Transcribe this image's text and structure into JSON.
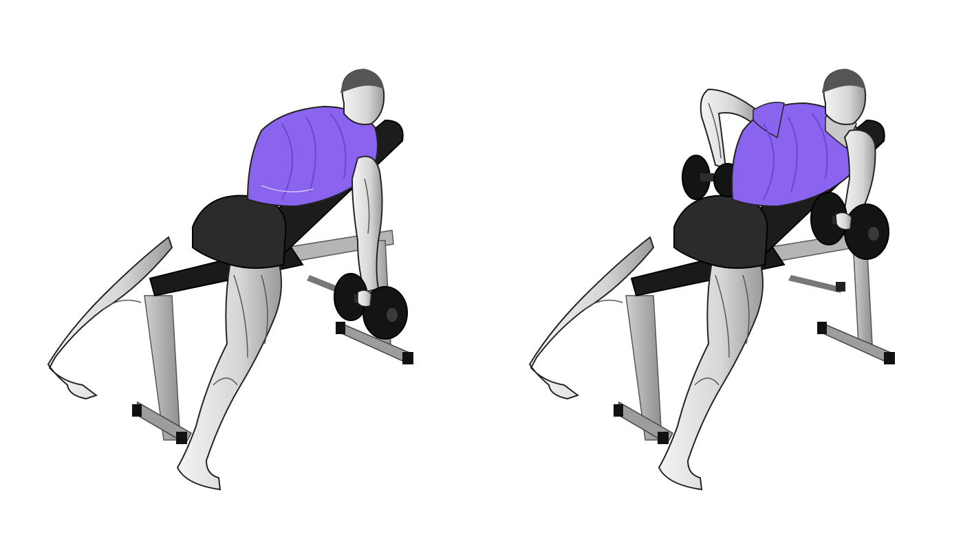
{
  "colors": {
    "background": "#ffffff",
    "target_muscle": "#8a63ee",
    "target_muscle_dark": "#6a45d6",
    "skin_light": "#eeeeee",
    "skin_mid": "#c8c8c8",
    "skin_shadow": "#8f8f8f",
    "outline": "#222222",
    "shorts": "#2b2b2b",
    "bench_pad": "#1a1a1a",
    "bench_frame": "#b9b9b9",
    "bench_frame_dark": "#8c8c8c",
    "dumbbell": "#141414"
  },
  "icons": {
    "left_figure": "incline-bench-dumbbell-row-start-position",
    "right_figure": "incline-bench-dumbbell-row-end-position"
  }
}
